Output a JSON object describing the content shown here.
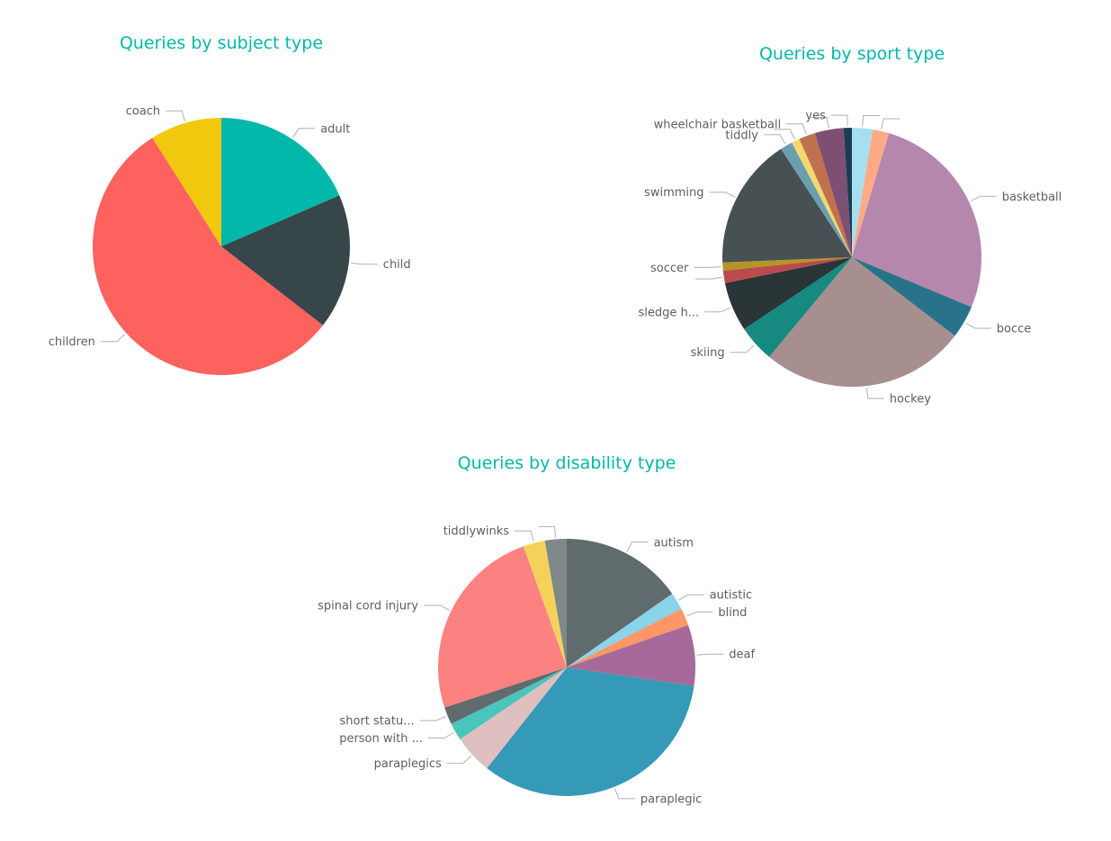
{
  "chart_data": [
    {
      "type": "pie",
      "title": "Queries by subject type",
      "slices": [
        {
          "label": "adult",
          "value": 18.5,
          "color": "#01B8AA"
        },
        {
          "label": "child",
          "value": 17.0,
          "color": "#374649"
        },
        {
          "label": "children",
          "value": 55.5,
          "color": "#FD625E"
        },
        {
          "label": "coach",
          "value": 9.0,
          "color": "#F2C80F"
        }
      ]
    },
    {
      "type": "pie",
      "title": "Queries by sport type",
      "slices": [
        {
          "label": "",
          "value": 2.5,
          "color": "#A5E0F0"
        },
        {
          "label": "",
          "value": 2.0,
          "color": "#FEAB85"
        },
        {
          "label": "basketball",
          "value": 26.0,
          "color": "#B687AC"
        },
        {
          "label": "bocce",
          "value": 4.0,
          "color": "#28738A"
        },
        {
          "label": "hockey",
          "value": 25.0,
          "color": "#A78F8F"
        },
        {
          "label": "skiing",
          "value": 4.5,
          "color": "#168980"
        },
        {
          "label": "sledge h...",
          "value": 6.0,
          "color": "#293537"
        },
        {
          "label": "",
          "value": 1.5,
          "color": "#BB4A4A"
        },
        {
          "label": "soccer",
          "value": 1.0,
          "color": "#B59525"
        },
        {
          "label": "swimming",
          "value": 16.0,
          "color": "#475052"
        },
        {
          "label": "tiddly",
          "value": 1.5,
          "color": "#6A9FB0"
        },
        {
          "label": "",
          "value": 1.0,
          "color": "#F5D76E"
        },
        {
          "label": "wheelchair basketball",
          "value": 2.0,
          "color": "#C0714E"
        },
        {
          "label": "",
          "value": 3.5,
          "color": "#7D4F73"
        },
        {
          "label": "yes",
          "value": 1.0,
          "color": "#1A3D52"
        }
      ]
    },
    {
      "type": "pie",
      "title": "Queries by disability type",
      "slices": [
        {
          "label": "autism",
          "value": 14.0,
          "color": "#5F6B6D"
        },
        {
          "label": "autistic",
          "value": 2.0,
          "color": "#8AD4EB"
        },
        {
          "label": "blind",
          "value": 2.0,
          "color": "#FE9666"
        },
        {
          "label": "deaf",
          "value": 7.0,
          "color": "#A66999"
        },
        {
          "label": "paraplegic",
          "value": 30.5,
          "color": "#3599B8"
        },
        {
          "label": "paraplegics",
          "value": 4.5,
          "color": "#DFBFBF"
        },
        {
          "label": "person with ...",
          "value": 2.0,
          "color": "#4AC5BB"
        },
        {
          "label": "short statu...",
          "value": 2.0,
          "color": "#5F6B6D"
        },
        {
          "label": "spinal cord injury",
          "value": 22.5,
          "color": "#FB8281"
        },
        {
          "label": "tiddlywinks",
          "value": 2.5,
          "color": "#F4D25A"
        },
        {
          "label": "",
          "value": 2.5,
          "color": "#7F898A"
        }
      ]
    }
  ]
}
